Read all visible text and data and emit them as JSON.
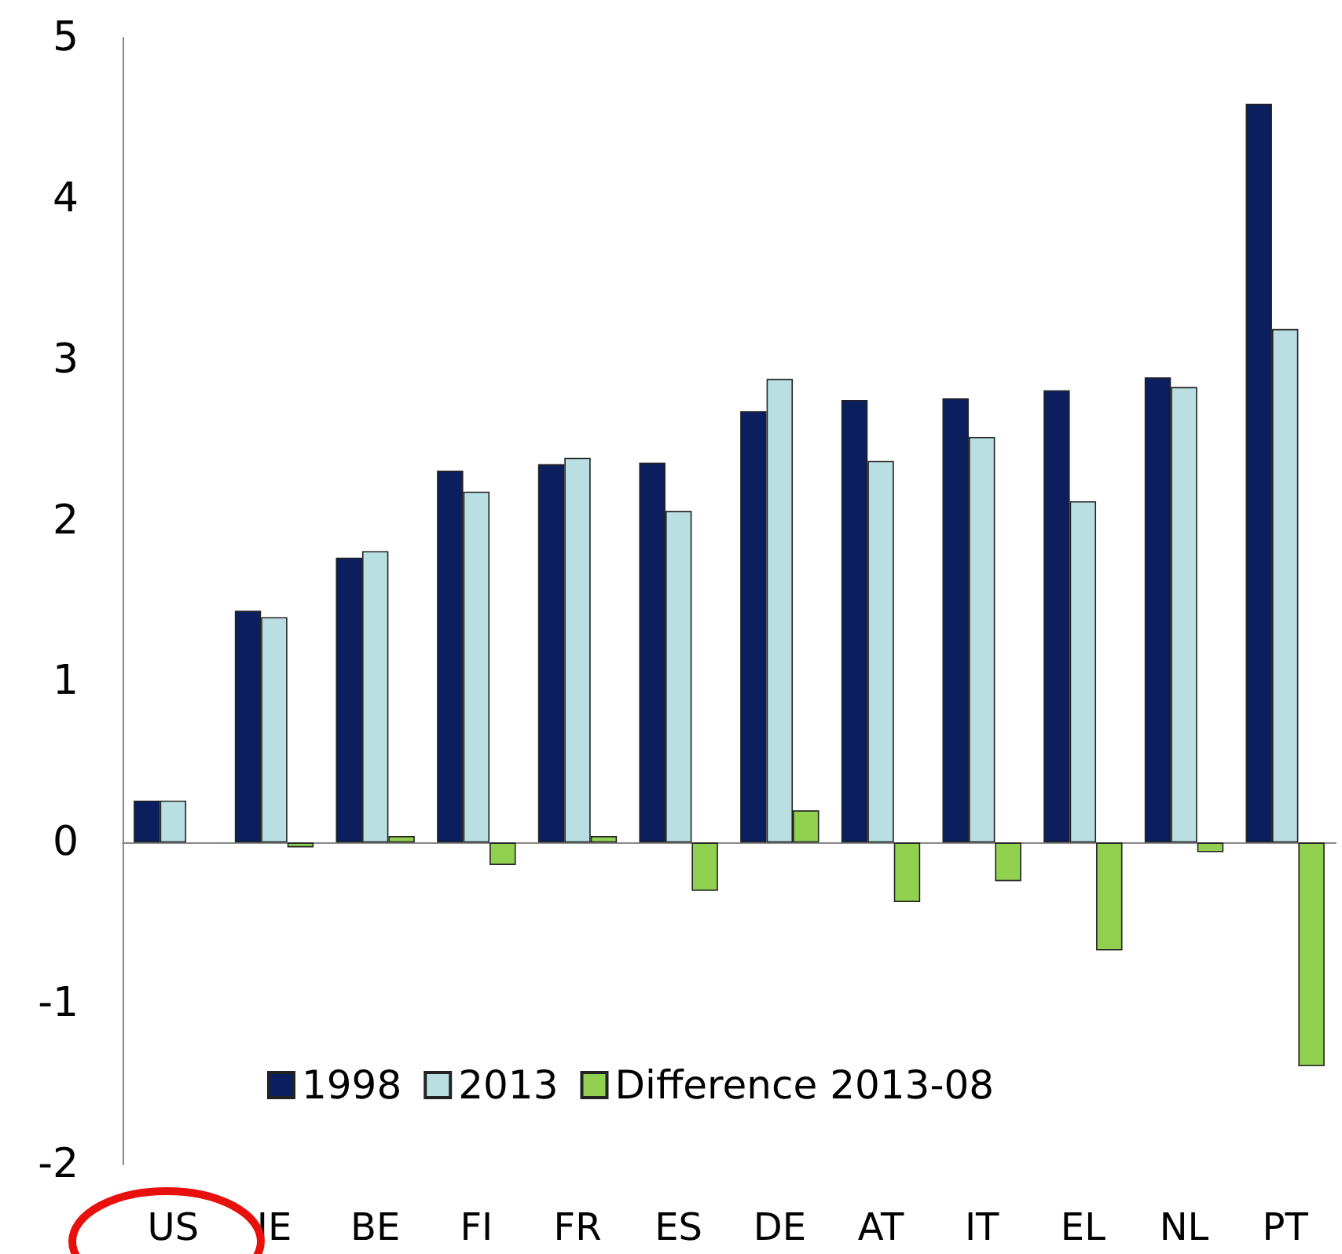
{
  "chart_data": {
    "type": "bar",
    "categories": [
      "US",
      "IE",
      "BE",
      "FI",
      "FR",
      "ES",
      "DE",
      "AT",
      "IT",
      "EL",
      "NL",
      "PT"
    ],
    "series": [
      {
        "name": "1998",
        "color": "#0b1f5e",
        "values": [
          0.26,
          1.44,
          1.77,
          2.31,
          2.35,
          2.36,
          2.68,
          2.75,
          2.76,
          2.81,
          2.89,
          4.59
        ]
      },
      {
        "name": "2013",
        "color": "#b9dfe2",
        "values": [
          0.26,
          1.4,
          1.81,
          2.18,
          2.39,
          2.06,
          2.88,
          2.37,
          2.52,
          2.12,
          2.83,
          3.19
        ]
      },
      {
        "name": "Difference 2013-08",
        "color": "#92d050",
        "values": [
          null,
          -0.03,
          0.04,
          -0.14,
          0.04,
          -0.3,
          0.2,
          -0.37,
          -0.24,
          -0.67,
          -0.06,
          -1.39
        ]
      }
    ],
    "ylim": [
      -2,
      5
    ],
    "yticks": [
      -2,
      -1,
      0,
      1,
      2,
      3,
      4,
      5
    ],
    "legend": "bottom"
  }
}
